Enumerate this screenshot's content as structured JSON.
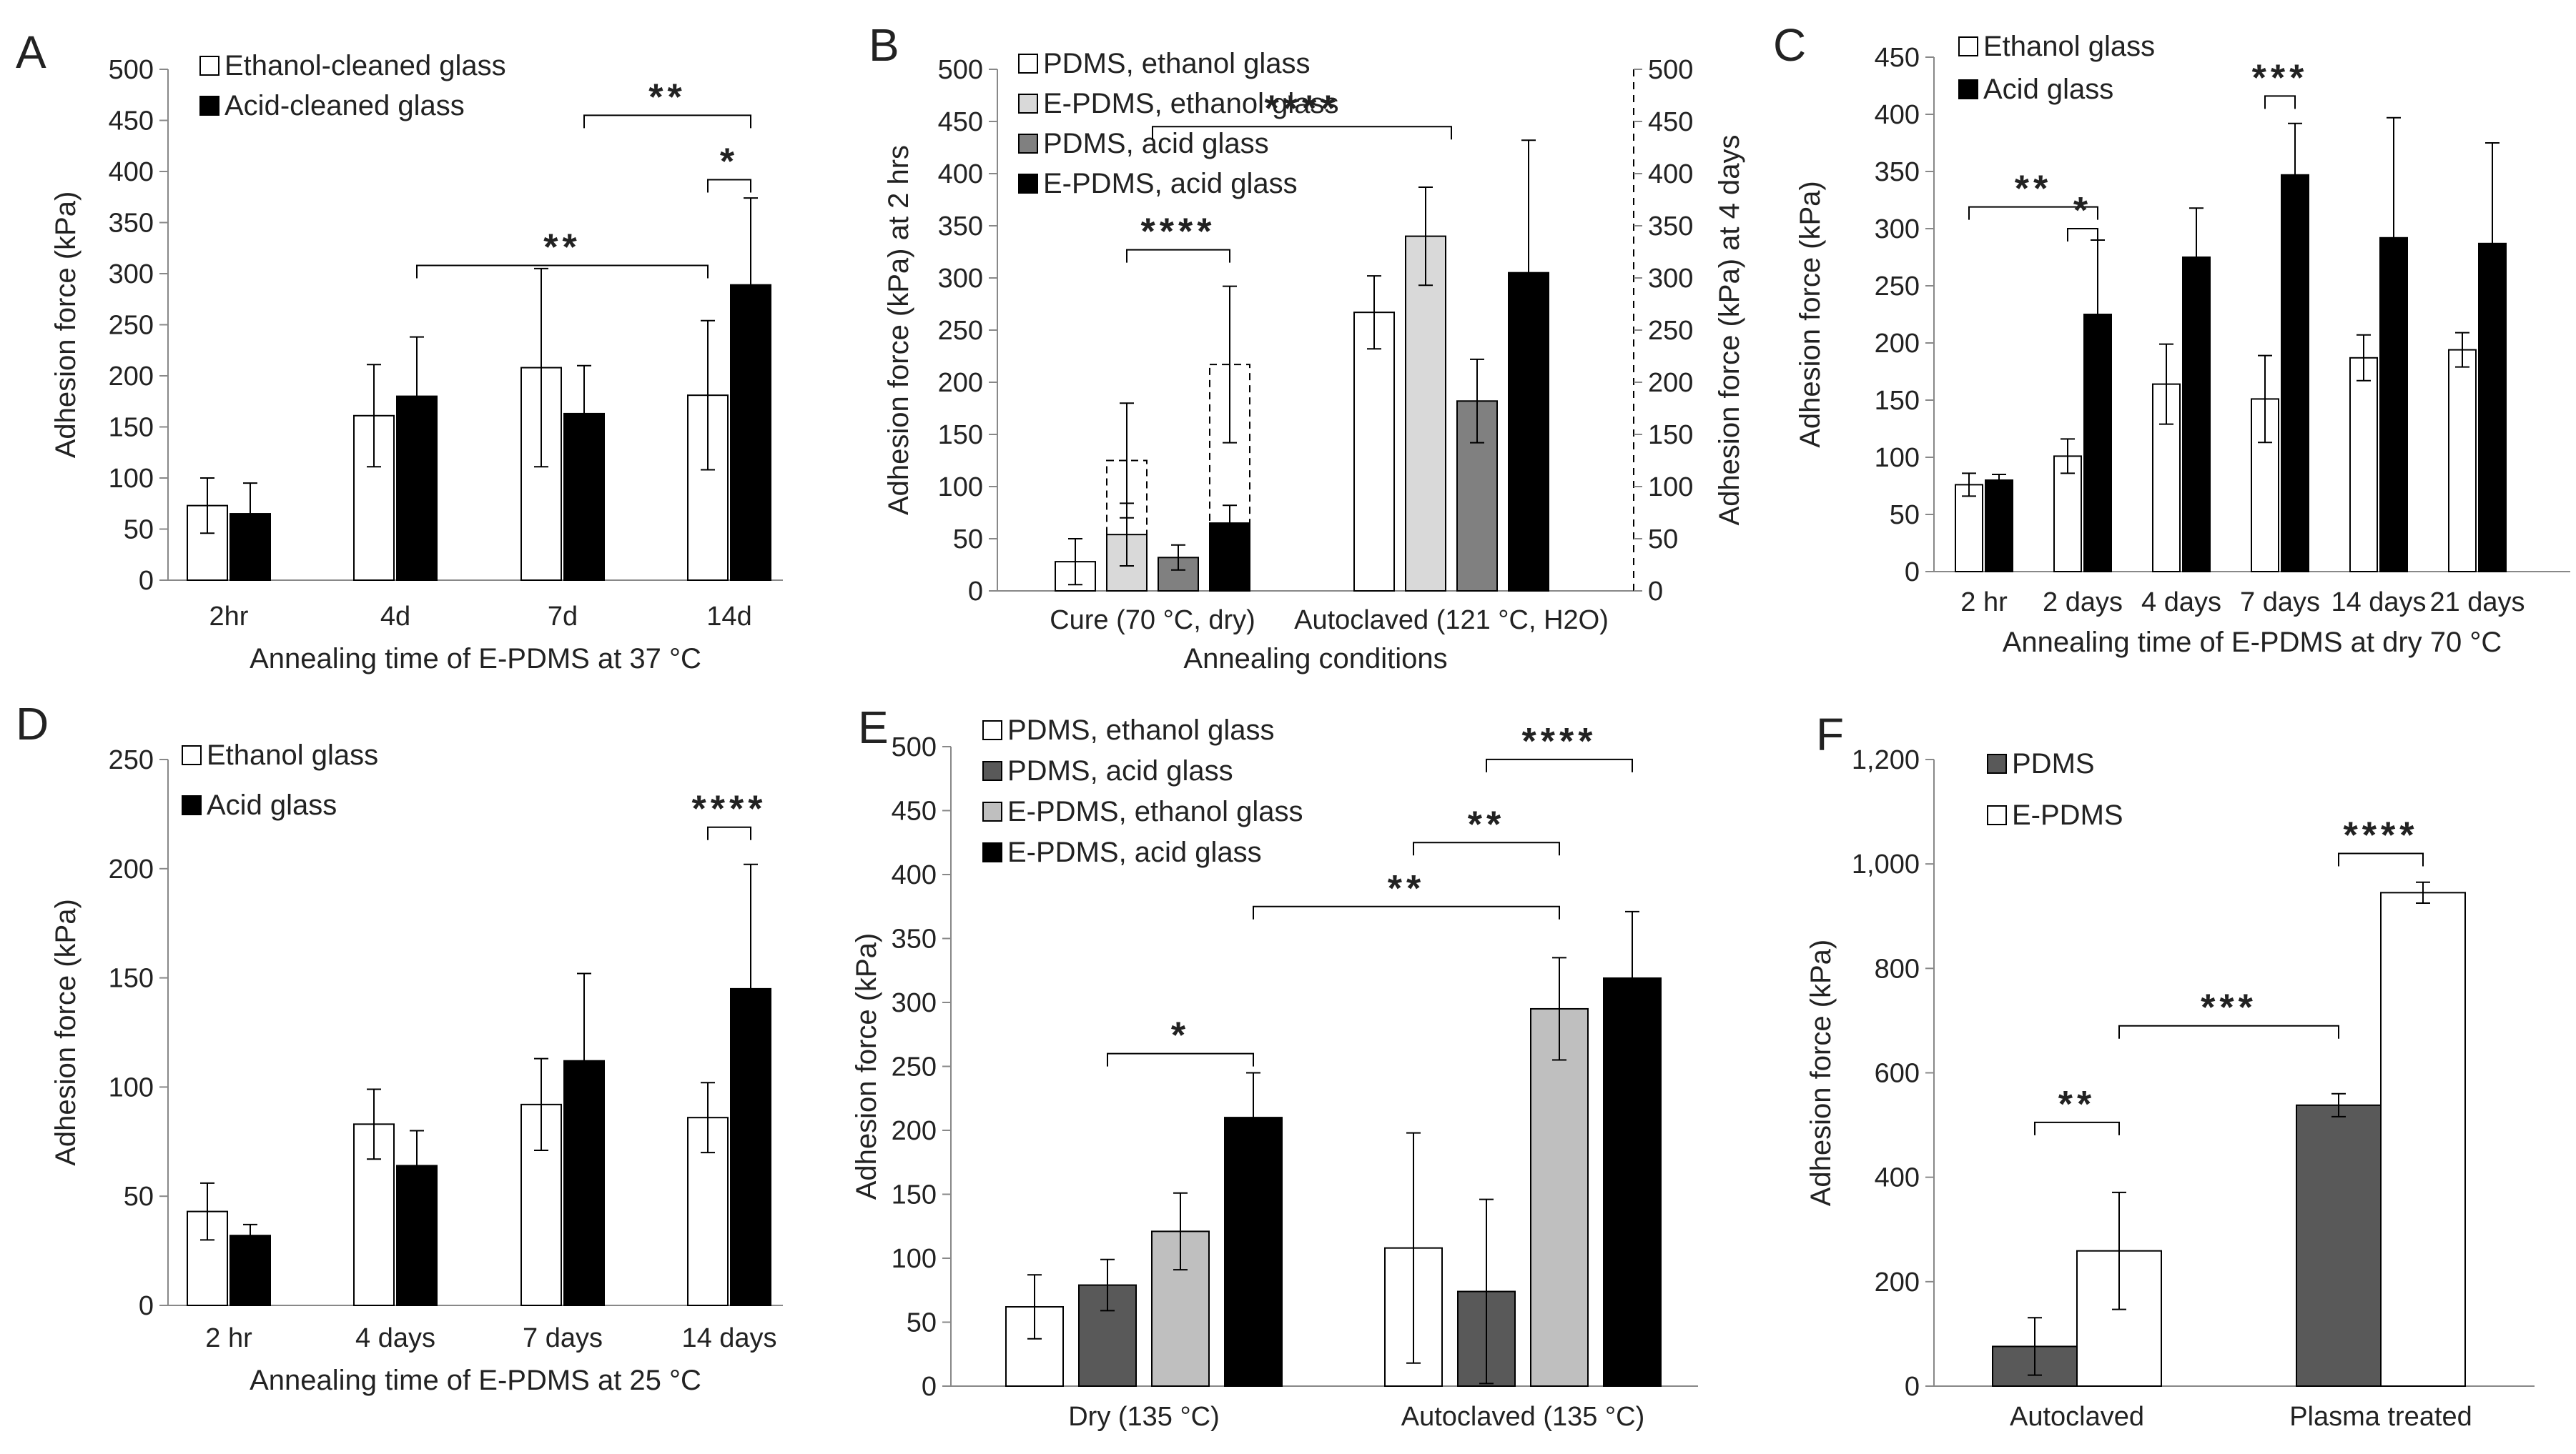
{
  "chart_data": [
    {
      "panel": "A",
      "type": "bar",
      "categories": [
        "2hr",
        "4d",
        "7d",
        "14d"
      ],
      "series": [
        {
          "name": "Ethanol-cleaned glass",
          "color": "#ffffff",
          "values": [
            73,
            161,
            208,
            181
          ],
          "errors": [
            27,
            50,
            97,
            73
          ]
        },
        {
          "name": "Acid-cleaned glass",
          "color": "#000000",
          "values": [
            65,
            180,
            163,
            289
          ],
          "errors": [
            30,
            58,
            47,
            85
          ]
        }
      ],
      "xlabel": "Annealing time of E-PDMS at 37 °C",
      "ylabel": "Adhesion force (kPa)",
      "ylim": [
        0,
        500
      ],
      "yticks": [
        0,
        50,
        100,
        150,
        200,
        250,
        300,
        350,
        400,
        450,
        500
      ],
      "ytick_labels": [
        "0",
        "50",
        "100",
        "150",
        "200",
        "250",
        "300",
        "350",
        "400",
        "450",
        "500"
      ],
      "legend_position": "top-left",
      "significance": [
        {
          "text": "**",
          "from": "1.1",
          "to": "3.0",
          "level": 308
        },
        {
          "text": "*",
          "from": "3.0",
          "to": "3.1",
          "level": 392
        },
        {
          "text": "**",
          "from": "2.1",
          "to": "3.1",
          "level": 455
        }
      ]
    },
    {
      "panel": "B",
      "type": "bar",
      "categories": [
        "Cure (70 °C, dry)",
        "Autoclaved (121 °C, H2O)"
      ],
      "series": [
        {
          "name": "PDMS, ethanol glass",
          "color": "#ffffff",
          "values": [
            28,
            267
          ],
          "errors": [
            22,
            35
          ]
        },
        {
          "name": "E-PDMS, ethanol glass",
          "color": "#d9d9d9",
          "values": [
            54,
            340
          ],
          "errors": [
            30,
            47
          ]
        },
        {
          "name": "PDMS, acid glass",
          "color": "#808080",
          "values": [
            32,
            182
          ],
          "errors": [
            12,
            40
          ]
        },
        {
          "name": "E-PDMS, acid glass",
          "color": "#000000",
          "values": [
            65,
            305
          ],
          "errors": [
            17,
            127
          ]
        }
      ],
      "dashed_bars_4_days": [
        {
          "series": "E-PDMS, ethanol glass",
          "value": 125,
          "error": 55
        },
        {
          "series": "E-PDMS, acid glass",
          "value": 217,
          "error": 75
        }
      ],
      "xlabel": "Annealing conditions",
      "ylabel": "Adhesion force (kPa) at 2 hrs",
      "ylabel_right": "Adhesion force (kPa) at 4 days",
      "ylim": [
        0,
        500
      ],
      "yticks": [
        0,
        50,
        100,
        150,
        200,
        250,
        300,
        350,
        400,
        450,
        500
      ],
      "ytick_labels": [
        "0",
        "50",
        "100",
        "150",
        "200",
        "250",
        "300",
        "350",
        "400",
        "450",
        "500"
      ],
      "legend_position": "top-left",
      "significance": [
        {
          "text": "****",
          "from": "0.1",
          "to": "0.3",
          "level": 327
        },
        {
          "text": "****",
          "from": "0.0-0.3",
          "to": "1.0-1.3",
          "level": 445
        }
      ]
    },
    {
      "panel": "C",
      "type": "bar",
      "categories": [
        "2 hr",
        "2 days",
        "4 days",
        "7 days",
        "14 days",
        "21 days"
      ],
      "series": [
        {
          "name": "Ethanol glass",
          "color": "#ffffff",
          "values": [
            76,
            101,
            164,
            151,
            187,
            194
          ],
          "errors": [
            10,
            15,
            35,
            38,
            20,
            15
          ]
        },
        {
          "name": "Acid glass",
          "color": "#000000",
          "values": [
            80,
            225,
            275,
            347,
            292,
            287
          ],
          "errors": [
            5,
            65,
            43,
            45,
            105,
            88
          ]
        }
      ],
      "xlabel": "Annealing time of E-PDMS at dry 70 °C",
      "ylabel": "Adhesion force (kPa)",
      "ylim": [
        0,
        450
      ],
      "yticks": [
        0,
        50,
        100,
        150,
        200,
        250,
        300,
        350,
        400,
        450
      ],
      "ytick_labels": [
        "0",
        "50",
        "100",
        "150",
        "200",
        "250",
        "300",
        "350",
        "400",
        "450"
      ],
      "legend_position": "top-left",
      "significance": [
        {
          "text": "**",
          "from": "0.0",
          "to": "1.1",
          "level": 319
        },
        {
          "text": "*",
          "from": "1.0",
          "to": "1.1",
          "level": 300
        },
        {
          "text": "***",
          "from": "3.0",
          "to": "3.1",
          "level": 416
        }
      ]
    },
    {
      "panel": "D",
      "type": "bar",
      "categories": [
        "2 hr",
        "4 days",
        "7 days",
        "14 days"
      ],
      "series": [
        {
          "name": "Ethanol glass",
          "color": "#ffffff",
          "values": [
            43,
            83,
            92,
            86
          ],
          "errors": [
            13,
            16,
            21,
            16
          ]
        },
        {
          "name": "Acid glass",
          "color": "#000000",
          "values": [
            32,
            64,
            112,
            145
          ],
          "errors": [
            5,
            16,
            40,
            57
          ]
        }
      ],
      "xlabel": "Annealing time of E-PDMS at 25 °C",
      "ylabel": "Adhesion force (kPa)",
      "ylim": [
        0,
        250
      ],
      "yticks": [
        0,
        50,
        100,
        150,
        200,
        250
      ],
      "ytick_labels": [
        "0",
        "50",
        "100",
        "150",
        "200",
        "250"
      ],
      "legend_position": "top-left",
      "significance": [
        {
          "text": "****",
          "from": "3.0",
          "to": "3.1",
          "level": 219
        }
      ]
    },
    {
      "panel": "E",
      "type": "bar",
      "categories": [
        "Dry (135 °C)",
        "Autoclaved (135 °C)"
      ],
      "series": [
        {
          "name": "PDMS, ethanol glass",
          "color": "#ffffff",
          "values": [
            62,
            108
          ],
          "errors": [
            25,
            90
          ]
        },
        {
          "name": "PDMS, acid glass",
          "color": "#595959",
          "values": [
            79,
            74
          ],
          "errors": [
            20,
            72
          ]
        },
        {
          "name": "E-PDMS, ethanol glass",
          "color": "#bfbfbf",
          "values": [
            121,
            295
          ],
          "errors": [
            30,
            40
          ]
        },
        {
          "name": "E-PDMS, acid glass",
          "color": "#000000",
          "values": [
            210,
            319
          ],
          "errors": [
            35,
            52
          ]
        }
      ],
      "xlabel": "",
      "ylabel": "Adhesion force (kPa)",
      "ylim": [
        0,
        500
      ],
      "yticks": [
        0,
        50,
        100,
        150,
        200,
        250,
        300,
        350,
        400,
        450,
        500
      ],
      "ytick_labels": [
        "0",
        "50",
        "100",
        "150",
        "200",
        "250",
        "300",
        "350",
        "400",
        "450",
        "500"
      ],
      "legend_position": "top-left",
      "significance": [
        {
          "text": "*",
          "from": "0.1",
          "to": "0.3",
          "level": 260
        },
        {
          "text": "**",
          "from": "0.3",
          "to": "1.2",
          "level": 375
        },
        {
          "text": "**",
          "from": "1.0",
          "to": "1.2",
          "level": 425
        },
        {
          "text": "****",
          "from": "1.1",
          "to": "1.3",
          "level": 490
        }
      ]
    },
    {
      "panel": "F",
      "type": "bar",
      "categories": [
        "Autoclaved",
        "Plasma treated"
      ],
      "series": [
        {
          "name": "PDMS",
          "color": "#595959",
          "values": [
            76,
            538
          ],
          "errors": [
            55,
            22
          ]
        },
        {
          "name": "E-PDMS",
          "color": "#ffffff",
          "values": [
            259,
            945
          ],
          "errors": [
            112,
            20
          ]
        }
      ],
      "xlabel": "",
      "ylabel": "Adhesion force (kPa)",
      "ylim": [
        0,
        1200
      ],
      "yticks": [
        0,
        200,
        400,
        600,
        800,
        1000,
        1200
      ],
      "ytick_labels": [
        "0",
        "200",
        "400",
        "600",
        "800",
        "1,000",
        "1,200"
      ],
      "legend_position": "top-left",
      "significance": [
        {
          "text": "**",
          "from": "0.0",
          "to": "0.1",
          "level": 505
        },
        {
          "text": "***",
          "from": "0.1",
          "to": "1.0",
          "level": 690
        },
        {
          "text": "****",
          "from": "1.0",
          "to": "1.1",
          "level": 1020
        }
      ]
    }
  ]
}
